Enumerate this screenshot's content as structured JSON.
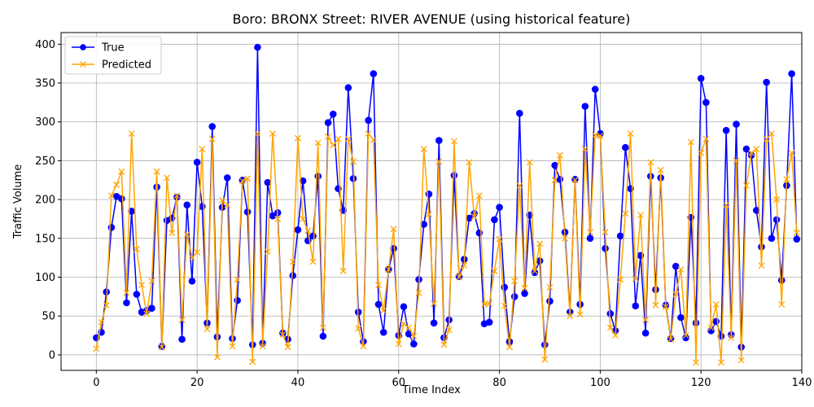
{
  "chart_data": {
    "type": "line",
    "title": "Boro: BRONX Street: RIVER AVENUE (using historical feature)",
    "xlabel": "Time Index",
    "ylabel": "Traffic Volume",
    "xlim": [
      -7,
      140
    ],
    "ylim": [
      -20,
      415
    ],
    "xticks": [
      0,
      20,
      40,
      60,
      80,
      100,
      120,
      140
    ],
    "yticks": [
      0,
      50,
      100,
      150,
      200,
      250,
      300,
      350,
      400
    ],
    "grid": true,
    "legend_position": "top-left",
    "series": [
      {
        "name": "True",
        "color": "#0000ff",
        "marker": "circle",
        "values": [
          22,
          29,
          81,
          164,
          204,
          201,
          67,
          185,
          78,
          55,
          57,
          60,
          216,
          11,
          173,
          176,
          203,
          20,
          193,
          95,
          248,
          191,
          41,
          294,
          23,
          190,
          228,
          21,
          70,
          225,
          184,
          13,
          396,
          15,
          222,
          179,
          183,
          28,
          20,
          102,
          161,
          224,
          147,
          153,
          230,
          24,
          299,
          310,
          214,
          186,
          344,
          227,
          55,
          17,
          302,
          362,
          65,
          29,
          110,
          137,
          25,
          62,
          27,
          14,
          97,
          168,
          207,
          41,
          276,
          22,
          45,
          231,
          101,
          123,
          176,
          182,
          157,
          40,
          42,
          174,
          190,
          87,
          17,
          75,
          311,
          79,
          180,
          106,
          121,
          13,
          69,
          244,
          226,
          158,
          55,
          226,
          65,
          320,
          150,
          342,
          285,
          137,
          53,
          31,
          153,
          267,
          214,
          63,
          128,
          28,
          230,
          84,
          228,
          64,
          21,
          114,
          48,
          22,
          177,
          41,
          356,
          325,
          31,
          43,
          24,
          289,
          26,
          297,
          10,
          265,
          257,
          186,
          139,
          351,
          150,
          174,
          96,
          218,
          362,
          149
        ]
      },
      {
        "name": "Predicted",
        "color": "#ffa500",
        "marker": "x",
        "values": [
          8,
          42,
          64,
          205,
          219,
          236,
          80,
          285,
          136,
          90,
          53,
          95,
          236,
          10,
          228,
          157,
          205,
          45,
          155,
          125,
          132,
          265,
          33,
          278,
          -3,
          199,
          193,
          11,
          97,
          224,
          227,
          -9,
          285,
          11,
          133,
          285,
          175,
          26,
          10,
          120,
          279,
          175,
          160,
          120,
          273,
          35,
          281,
          270,
          278,
          108,
          278,
          249,
          34,
          11,
          285,
          277,
          90,
          57,
          110,
          162,
          14,
          40,
          35,
          24,
          80,
          265,
          181,
          66,
          249,
          13,
          32,
          275,
          100,
          115,
          248,
          178,
          205,
          65,
          66,
          108,
          149,
          63,
          10,
          95,
          218,
          86,
          248,
          108,
          143,
          -6,
          87,
          225,
          257,
          150,
          50,
          225,
          52,
          265,
          158,
          283,
          282,
          158,
          35,
          25,
          97,
          182,
          285,
          98,
          180,
          45,
          248,
          64,
          238,
          62,
          20,
          78,
          110,
          25,
          274,
          -10,
          260,
          278,
          35,
          65,
          -10,
          193,
          22,
          250,
          -7,
          218,
          260,
          265,
          115,
          278,
          285,
          200,
          65,
          226,
          260,
          157
        ]
      }
    ]
  }
}
